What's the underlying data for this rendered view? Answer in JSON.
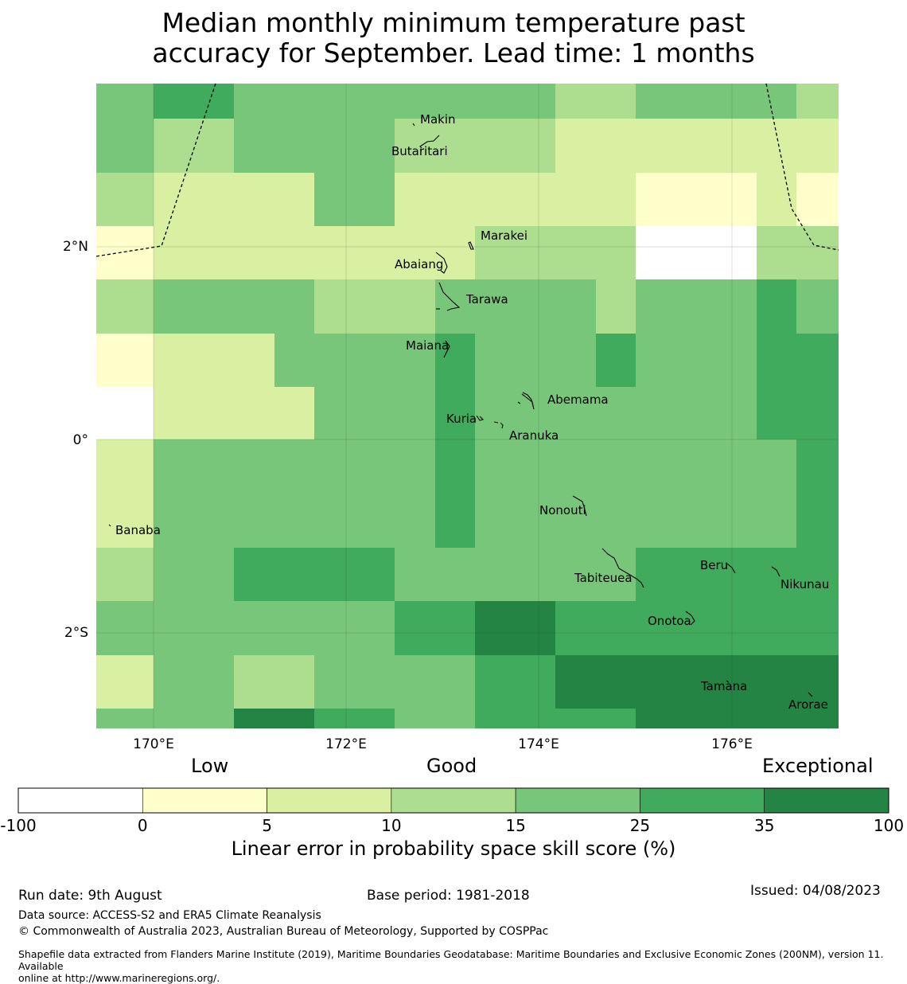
{
  "title_line1": "Median monthly minimum temperature past",
  "title_line2": "accuracy for September. Lead time: 1 months",
  "lat_labels": [
    "2°N",
    "0°",
    "2°S"
  ],
  "lon_labels": [
    "170°E",
    "172°E",
    "174°E",
    "176°E"
  ],
  "categories": {
    "low": "Low",
    "good": "Good",
    "exceptional": "Exceptional"
  },
  "colorbar": {
    "ticks": [
      "-100",
      "0",
      "5",
      "10",
      "15",
      "25",
      "35",
      "100"
    ],
    "colors": [
      "#ffffff",
      "#ffffcc",
      "#d9f0a3",
      "#addd8e",
      "#78c679",
      "#41ab5d",
      "#238443"
    ],
    "label": "Linear error in probability space skill score (%)"
  },
  "islands": [
    "Makin",
    "Butaritari",
    "Marakei",
    "Abaiang",
    "Tarawa",
    "Maiana",
    "Abemama",
    "Kuria",
    "Aranuka",
    "Nonouti",
    "Banaba",
    "Tabiteuea",
    "Beru",
    "Nikunau",
    "Onotoa",
    "Tamana",
    "Arorae"
  ],
  "grid_classes": [
    [
      4,
      5,
      4,
      4,
      4,
      4,
      4,
      4,
      3,
      3,
      4,
      4,
      4,
      3
    ],
    [
      4,
      3,
      4,
      4,
      4,
      3,
      3,
      3,
      2,
      2,
      2,
      2,
      2,
      2
    ],
    [
      3,
      2,
      2,
      2,
      4,
      2,
      2,
      2,
      2,
      2,
      1,
      1,
      2,
      1
    ],
    [
      1,
      2,
      2,
      2,
      2,
      2,
      2,
      3,
      3,
      3,
      0,
      0,
      3,
      3
    ],
    [
      3,
      4,
      4,
      4,
      3,
      3,
      4,
      4,
      4,
      3,
      4,
      4,
      5,
      4
    ],
    [
      1,
      2,
      2,
      4,
      4,
      4,
      5,
      4,
      4,
      5,
      4,
      4,
      5,
      5
    ],
    [
      0,
      2,
      2,
      2,
      4,
      4,
      5,
      4,
      4,
      4,
      4,
      4,
      5,
      5
    ],
    [
      2,
      4,
      4,
      4,
      4,
      4,
      5,
      4,
      4,
      4,
      4,
      4,
      4,
      5
    ],
    [
      2,
      4,
      4,
      4,
      4,
      4,
      5,
      4,
      4,
      4,
      4,
      4,
      4,
      5
    ],
    [
      3,
      4,
      5,
      5,
      5,
      4,
      4,
      4,
      4,
      4,
      5,
      5,
      5,
      5
    ],
    [
      4,
      4,
      4,
      4,
      4,
      5,
      5,
      6,
      5,
      5,
      5,
      5,
      5,
      5
    ],
    [
      2,
      4,
      3,
      3,
      4,
      4,
      4,
      5,
      6,
      6,
      6,
      6,
      6,
      6
    ],
    [
      4,
      4,
      6,
      6,
      5,
      4,
      4,
      5,
      5,
      5,
      6,
      6,
      6,
      6
    ]
  ],
  "footer": {
    "run_date": "Run date: 9th August",
    "base_period": "Base period: 1981-2018",
    "issued": "Issued: 04/08/2023",
    "data_source": "Data source: ACCESS-S2 and ERA5 Climate Reanalysis",
    "copyright": "© Commonwealth of Australia 2023, Australian Bureau of Meteorology, Supported by COSPPac",
    "shapefile_line1": "Shapefile data extracted from Flanders Marine Institute (2019), Maritime Boundaries Geodatabase: Maritime Boundaries and Exclusive Economic Zones (200NM), version 11. Available",
    "shapefile_line2": "online at http://www.marineregions.org/."
  }
}
